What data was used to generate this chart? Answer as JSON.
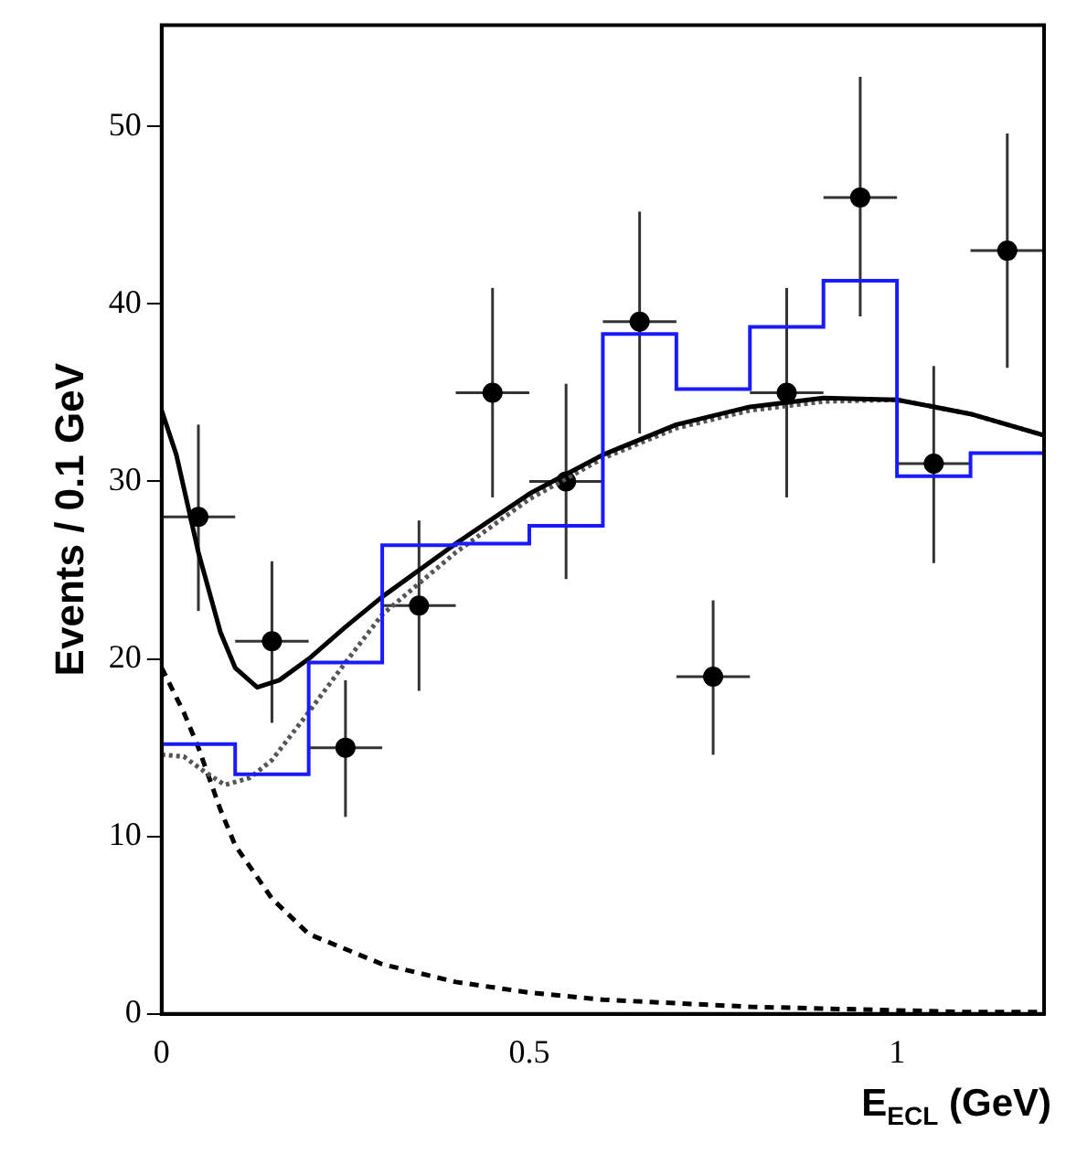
{
  "chart_data": {
    "type": "line",
    "xlabel": "E$_{ECL}$ (GeV)",
    "ylabel": "Events / 0.1 GeV",
    "xlim": [
      0,
      1.2
    ],
    "ylim": [
      0,
      55.7
    ],
    "xticks": [
      0,
      0.5,
      1
    ],
    "yticks": [
      0,
      10,
      20,
      30,
      40,
      50
    ],
    "grid": false,
    "legend": false,
    "series": [
      {
        "type": "histogram",
        "color": "#1a1aff",
        "bins": [
          0,
          0.1,
          0.2,
          0.3,
          0.4,
          0.5,
          0.6,
          0.7,
          0.8,
          0.9,
          1.0,
          1.1,
          1.2
        ],
        "values": [
          15.2,
          13.5,
          19.8,
          26.4,
          26.5,
          27.5,
          38.3,
          35.2,
          38.7,
          41.3,
          30.3,
          31.6
        ]
      },
      {
        "color": "#000000",
        "line_style": "solid",
        "marker": "none",
        "x": [
          0,
          0.02,
          0.05,
          0.08,
          0.1,
          0.13,
          0.16,
          0.2,
          0.25,
          0.3,
          0.4,
          0.5,
          0.6,
          0.7,
          0.8,
          0.9,
          1.0,
          1.1,
          1.2
        ],
        "values": [
          34.0,
          31.5,
          26.0,
          21.5,
          19.5,
          18.4,
          18.8,
          20.0,
          21.8,
          23.5,
          26.5,
          29.3,
          31.5,
          33.2,
          34.2,
          34.7,
          34.6,
          33.8,
          32.6
        ]
      },
      {
        "color": "#555555",
        "line_style": "dotted",
        "marker": "none",
        "x": [
          0,
          0.03,
          0.06,
          0.086,
          0.12,
          0.15,
          0.2,
          0.25,
          0.3,
          0.4,
          0.5,
          0.6,
          0.7,
          0.8,
          0.9,
          1.0,
          1.1,
          1.2
        ],
        "values": [
          14.6,
          14.5,
          13.6,
          12.9,
          13.3,
          14.3,
          17.0,
          19.8,
          22.5,
          26.0,
          29.0,
          31.3,
          33.0,
          34.0,
          34.5,
          34.6,
          33.8,
          32.6
        ]
      },
      {
        "color": "#000000",
        "line_style": "dashed",
        "marker": "none",
        "x": [
          0,
          0.03,
          0.05,
          0.08,
          0.1,
          0.15,
          0.2,
          0.3,
          0.4,
          0.5,
          0.6,
          0.7,
          0.8,
          0.9,
          1.0,
          1.1,
          1.2
        ],
        "values": [
          19.5,
          17.0,
          15.0,
          11.5,
          9.5,
          6.5,
          4.5,
          2.8,
          1.8,
          1.2,
          0.8,
          0.6,
          0.4,
          0.3,
          0.2,
          0.1,
          0.1
        ]
      },
      {
        "type": "scatter",
        "color": "#000000",
        "marker": "circle",
        "x": [
          0.05,
          0.15,
          0.25,
          0.35,
          0.45,
          0.55,
          0.65,
          0.75,
          0.85,
          0.95,
          1.05,
          1.15
        ],
        "values": [
          28.0,
          21.0,
          15.0,
          23.0,
          35.0,
          30.0,
          39.0,
          19.0,
          35.0,
          46.0,
          31.0,
          43.0
        ],
        "errors": [
          [
            22.7,
            33.2
          ],
          [
            16.4,
            25.5
          ],
          [
            11.1,
            18.8
          ],
          [
            18.2,
            27.8
          ],
          [
            29.1,
            40.9
          ],
          [
            24.5,
            35.5
          ],
          [
            32.7,
            45.2
          ],
          [
            14.6,
            23.3
          ],
          [
            29.1,
            40.9
          ],
          [
            39.3,
            52.8
          ],
          [
            25.4,
            36.5
          ],
          [
            36.4,
            49.6
          ]
        ],
        "xerrors": [
          0.05,
          0.05,
          0.05,
          0.05,
          0.05,
          0.05,
          0.05,
          0.05,
          0.05,
          0.05,
          0.05,
          0.05
        ]
      }
    ]
  }
}
